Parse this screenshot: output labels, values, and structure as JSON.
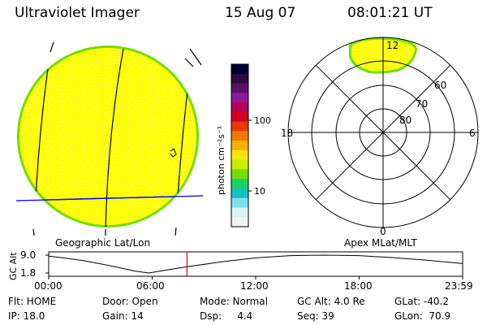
{
  "header": {
    "title": "Ultraviolet Imager",
    "date": "15 Aug 07",
    "time": "08:01:21 UT"
  },
  "colorbar": {
    "label": "photon cm⁻²s⁻¹",
    "ticks": [
      "100",
      "10"
    ],
    "colors": [
      "#000033",
      "#2b0a3d",
      "#5a0f6b",
      "#8b1a9a",
      "#b3005a",
      "#d4001f",
      "#e63a00",
      "#f07a00",
      "#f5b000",
      "#ffe600",
      "#c8ee00",
      "#74dd00",
      "#1fd060",
      "#19c0c0",
      "#7ee0ee",
      "#d8f4f8",
      "#f2f2f2"
    ]
  },
  "geo_panel": {
    "label": "Geographic Lat/Lon",
    "fill_color": "#ffff00",
    "rim_color": "#74dd00"
  },
  "polar_panel": {
    "label": "Apex MLat/MLT",
    "mlt_labels": {
      "top": "12",
      "left": "18",
      "right": "6",
      "bottom": "0"
    },
    "mlat_labels": [
      "60",
      "70",
      "80"
    ]
  },
  "altitude_plot": {
    "ylabel": "GC Alt",
    "yticks": [
      "9.0",
      "1.8"
    ],
    "xticks": [
      "00:00",
      "06:00",
      "12:00",
      "18:00",
      "23:59"
    ],
    "marker_color": "#e00000"
  },
  "chart_data": {
    "type": "line",
    "title": "",
    "xlabel": "",
    "ylabel": "GC Alt",
    "ylim": [
      1.8,
      9.0
    ],
    "xlim_hours": [
      0,
      24
    ],
    "x": [
      0,
      1,
      2,
      3,
      4,
      5,
      5.8,
      7,
      8,
      10,
      12,
      14,
      16,
      18,
      20,
      22,
      24
    ],
    "y": [
      8.6,
      7.8,
      6.8,
      5.5,
      4.1,
      2.6,
      1.8,
      3.2,
      4.3,
      6.3,
      7.9,
      8.8,
      9.0,
      8.8,
      8.0,
      6.9,
      5.6
    ],
    "marker_hour": 8.02
  },
  "footer": {
    "rows": [
      [
        "Flt: HOME",
        "Door: Open",
        "Mode: Normal",
        "GC Alt: 4.0 Re",
        "GLat: -40.2"
      ],
      [
        "IP: 18.0",
        "Gain: 14",
        "Dsp:     4.4",
        "Seq: 39",
        "GLon:  70.9"
      ]
    ]
  }
}
